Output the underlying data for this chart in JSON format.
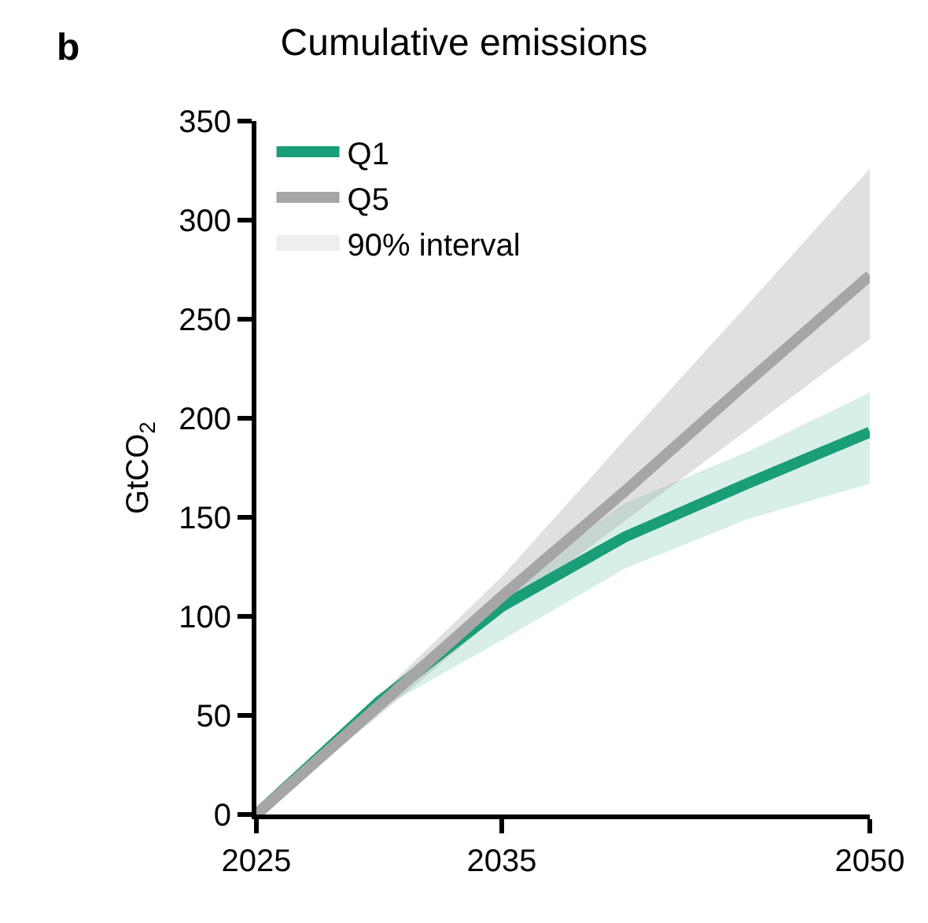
{
  "chart_data": {
    "type": "line",
    "title": "Cumulative emissions",
    "ylabel": "GtCO$_{2}$",
    "annotations": [
      "b",
      "90% interval"
    ],
    "x": [
      2025,
      2030,
      2035,
      2040,
      2045,
      2050
    ],
    "series": [
      {
        "name": "Q1",
        "color": "#1a9e77",
        "values": [
          0,
          57,
          105,
          140,
          167,
          193
        ],
        "lower": [
          0,
          53,
          88,
          124,
          149,
          167
        ],
        "upper": [
          0,
          60,
          112,
          157,
          183,
          213
        ]
      },
      {
        "name": "Q5",
        "color": "#a6a6a6",
        "values": [
          0,
          55,
          110,
          163,
          218,
          272
        ],
        "lower": [
          0,
          50,
          102,
          148,
          194,
          240
        ],
        "upper": [
          0,
          60,
          120,
          189,
          257,
          326
        ]
      }
    ],
    "xlim": [
      2025,
      2050
    ],
    "xticks": [
      2025,
      2035,
      2050
    ],
    "ylim": [
      0,
      350
    ],
    "yticks": [
      0,
      50,
      100,
      150,
      200,
      250,
      300,
      350
    ],
    "legend": "top left",
    "marker": "none",
    "line_style": "solid"
  }
}
